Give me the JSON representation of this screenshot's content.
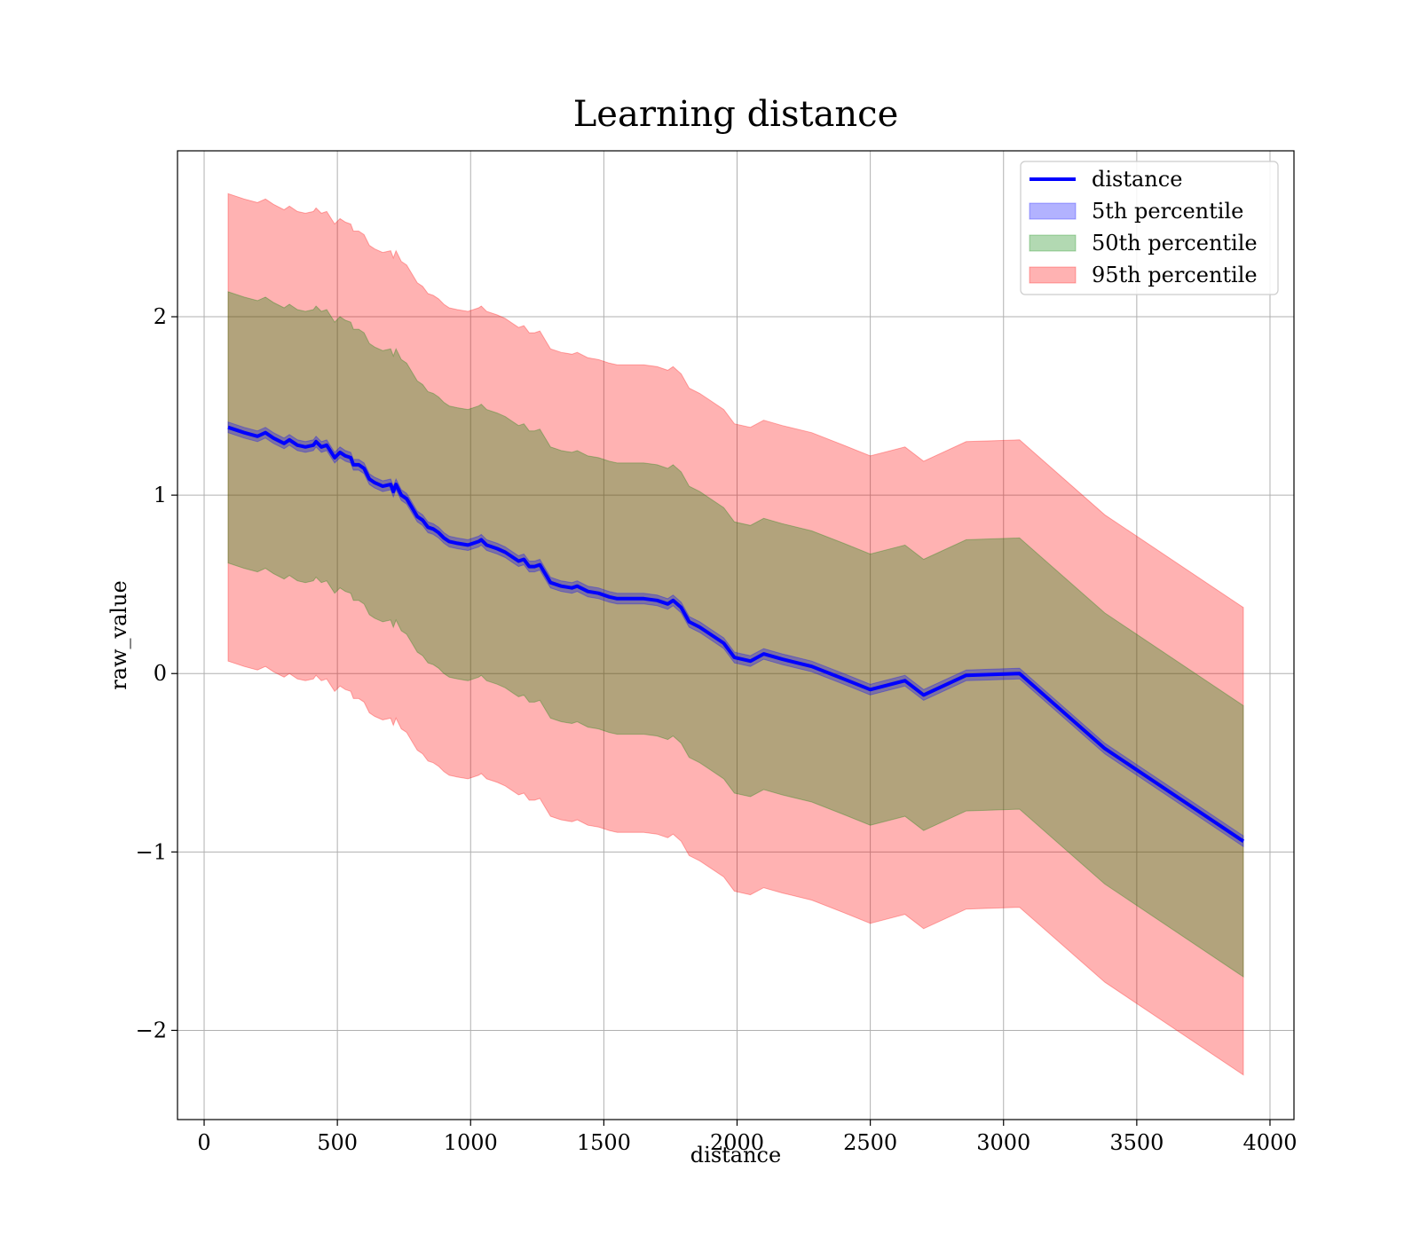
{
  "chart_data": {
    "type": "line",
    "title": "Learning distance",
    "xlabel": "distance",
    "ylabel": "raw_value",
    "xlim": [
      -100,
      4090
    ],
    "ylim": [
      -2.5,
      2.93
    ],
    "xticks": [
      0,
      500,
      1000,
      1500,
      2000,
      2500,
      3000,
      3500,
      4000
    ],
    "xtick_labels": [
      "0",
      "500",
      "1000",
      "1500",
      "2000",
      "2500",
      "3000",
      "3500",
      "4000"
    ],
    "yticks": [
      -2,
      -1,
      0,
      1,
      2
    ],
    "ytick_labels": [
      "−2",
      "−1",
      "0",
      "1",
      "2"
    ],
    "grid": true,
    "legend_position": "top-right",
    "x": [
      90,
      150,
      200,
      230,
      260,
      300,
      320,
      350,
      380,
      410,
      420,
      440,
      460,
      490,
      510,
      530,
      550,
      560,
      580,
      600,
      620,
      640,
      670,
      700,
      710,
      720,
      740,
      760,
      780,
      800,
      820,
      840,
      860,
      880,
      900,
      920,
      950,
      990,
      1010,
      1030,
      1040,
      1060,
      1100,
      1130,
      1160,
      1180,
      1200,
      1220,
      1240,
      1260,
      1280,
      1300,
      1320,
      1340,
      1380,
      1400,
      1440,
      1480,
      1520,
      1550,
      1600,
      1650,
      1700,
      1740,
      1760,
      1790,
      1820,
      1860,
      1900,
      1950,
      1990,
      2050,
      2100,
      2170,
      2280,
      2400,
      2500,
      2630,
      2700,
      2860,
      3060,
      3380,
      3900
    ],
    "series": [
      {
        "name": "distance",
        "role": "line",
        "color": "#0000ff",
        "values": [
          1.38,
          1.35,
          1.33,
          1.35,
          1.32,
          1.29,
          1.31,
          1.28,
          1.27,
          1.28,
          1.3,
          1.27,
          1.28,
          1.21,
          1.24,
          1.22,
          1.21,
          1.17,
          1.17,
          1.15,
          1.09,
          1.07,
          1.05,
          1.06,
          1.02,
          1.06,
          1.0,
          0.98,
          0.93,
          0.88,
          0.86,
          0.82,
          0.81,
          0.79,
          0.76,
          0.74,
          0.73,
          0.72,
          0.73,
          0.74,
          0.75,
          0.72,
          0.7,
          0.68,
          0.65,
          0.63,
          0.64,
          0.6,
          0.6,
          0.61,
          0.56,
          0.51,
          0.5,
          0.49,
          0.48,
          0.49,
          0.46,
          0.45,
          0.43,
          0.42,
          0.42,
          0.42,
          0.41,
          0.39,
          0.41,
          0.37,
          0.29,
          0.26,
          0.22,
          0.17,
          0.09,
          0.07,
          0.11,
          0.08,
          0.04,
          -0.03,
          -0.09,
          -0.04,
          -0.12,
          -0.01,
          0.0,
          -0.42,
          -0.94
        ]
      },
      {
        "name": "5th percentile",
        "role": "band",
        "color": "#0000ff",
        "half_width": 0.03
      },
      {
        "name": "50th percentile",
        "role": "band",
        "color": "#008000",
        "half_width": 0.76
      },
      {
        "name": "95th percentile",
        "role": "band",
        "color": "#ff0000",
        "half_width": 1.31
      }
    ]
  }
}
